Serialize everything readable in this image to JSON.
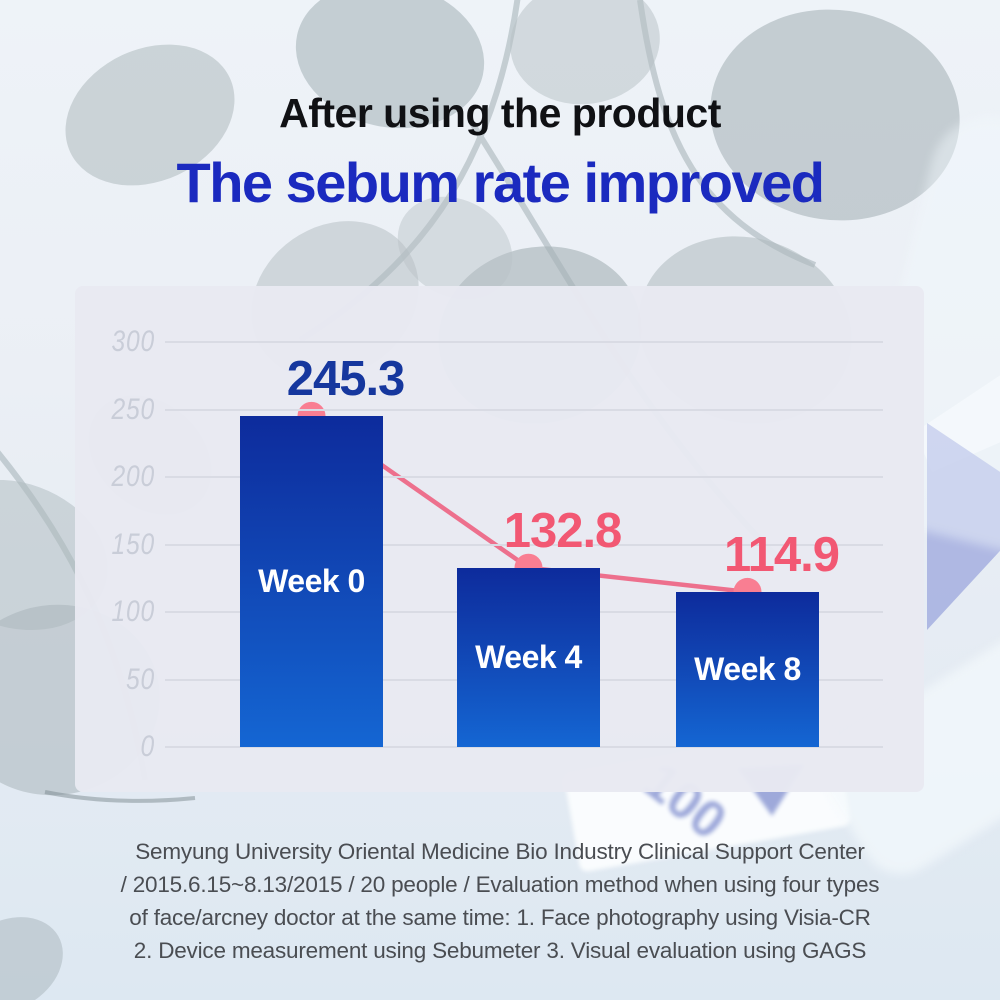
{
  "header": {
    "title": "After using the product",
    "subtitle": "The sebum rate improved"
  },
  "theme": {
    "accent_blue": "#1b2abf",
    "panel_bg": "#e8e9f1",
    "grid_color": "#d9dbe4",
    "tick_color": "#c9cdd8"
  },
  "chart_data": {
    "type": "bar",
    "title": "",
    "xlabel": "",
    "ylabel": "",
    "categories": [
      "Week 0",
      "Week 4",
      "Week 8"
    ],
    "values": [
      245.3,
      132.8,
      114.9
    ],
    "value_labels": [
      "245.3",
      "132.8",
      "114.9"
    ],
    "value_label_colors": [
      "#16379e",
      "#f25873",
      "#f25873"
    ],
    "y_ticks": [
      0,
      50,
      100,
      150,
      200,
      250,
      300
    ],
    "ylim": [
      0,
      300
    ],
    "grid": true,
    "legend": "none",
    "bar_color_top": "#0d2b9c",
    "bar_color_bottom": "#1466d3",
    "line_color": "#ee5576",
    "dot_color": "#f97e92",
    "trend": "overlaid line with dots at each bar top showing decline"
  },
  "footnote": {
    "lines": [
      "Semyung University Oriental Medicine Bio Industry Clinical Support Center",
      "/ 2015.6.15~8.13/2015 / 20 people / Evaluation method when using four types",
      "of face/arcney doctor at the same time: 1. Face photography using Visia-CR",
      "2. Device measurement using Sebumeter 3. Visual evaluation using GAGS"
    ]
  },
  "background": {
    "product_text": "100",
    "leaf_color": "#aab6bb",
    "product_accent": "#8d9ad4"
  }
}
